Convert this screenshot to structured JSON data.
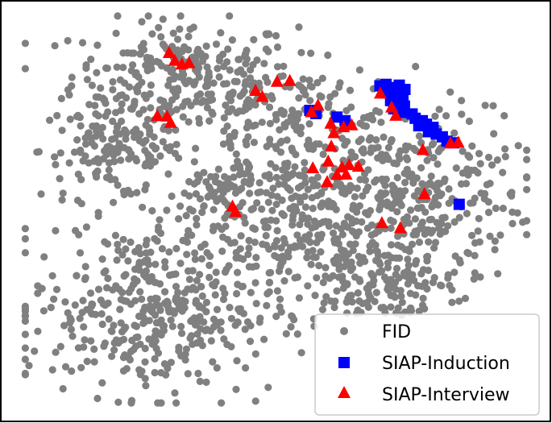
{
  "colors": {
    "fid": "#808080",
    "siap_induction": "#0000ff",
    "siap_interview": "#ff0000",
    "frame": "#000000",
    "legend_border": "#cccccc"
  },
  "legend": {
    "items": [
      {
        "label": "FID",
        "marker": "circle"
      },
      {
        "label": "SIAP-Induction",
        "marker": "square"
      },
      {
        "label": "SIAP-Interview",
        "marker": "triangle"
      }
    ],
    "placement": "lower-right"
  },
  "chart_data": {
    "type": "scatter",
    "title": "",
    "xlabel": "",
    "ylabel": "",
    "axes_visible": false,
    "grid": false,
    "xlim": [
      0,
      100
    ],
    "ylim": [
      0,
      100
    ],
    "series": [
      {
        "name": "FID",
        "marker": "circle",
        "clusters": [
          {
            "cx": 32,
            "cy": 84,
            "sx": 11,
            "sy": 7,
            "n": 260
          },
          {
            "cx": 18,
            "cy": 65,
            "sx": 7,
            "sy": 6,
            "n": 140
          },
          {
            "cx": 53,
            "cy": 70,
            "sx": 12,
            "sy": 8,
            "n": 200
          },
          {
            "cx": 77,
            "cy": 54,
            "sx": 11,
            "sy": 11,
            "n": 300
          },
          {
            "cx": 60,
            "cy": 42,
            "sx": 11,
            "sy": 9,
            "n": 220
          },
          {
            "cx": 43,
            "cy": 52,
            "sx": 8,
            "sy": 6,
            "n": 120
          },
          {
            "cx": 26,
            "cy": 25,
            "sx": 12,
            "sy": 11,
            "n": 420
          },
          {
            "cx": 72,
            "cy": 29,
            "sx": 7,
            "sy": 7,
            "n": 130
          }
        ],
        "count": 1790
      },
      {
        "name": "SIAP-Induction",
        "marker": "square",
        "points": [
          {
            "x": 70.3,
            "y": 81.3
          },
          {
            "x": 71.5,
            "y": 81.7
          },
          {
            "x": 72.8,
            "y": 80.9
          },
          {
            "x": 74.1,
            "y": 81.5
          },
          {
            "x": 75.2,
            "y": 80.4
          },
          {
            "x": 71.9,
            "y": 79.5
          },
          {
            "x": 73.6,
            "y": 78.8
          },
          {
            "x": 74.8,
            "y": 78.2
          },
          {
            "x": 72.4,
            "y": 77.6
          },
          {
            "x": 73.9,
            "y": 76.9
          },
          {
            "x": 75.1,
            "y": 76.2
          },
          {
            "x": 73.0,
            "y": 75.5
          },
          {
            "x": 74.5,
            "y": 74.6
          },
          {
            "x": 76.6,
            "y": 74.2
          },
          {
            "x": 77.2,
            "y": 73.1
          },
          {
            "x": 78.6,
            "y": 72.5
          },
          {
            "x": 77.9,
            "y": 71.2
          },
          {
            "x": 79.4,
            "y": 71.6
          },
          {
            "x": 80.7,
            "y": 70.8
          },
          {
            "x": 79.8,
            "y": 69.7
          },
          {
            "x": 81.3,
            "y": 69.1
          },
          {
            "x": 82.5,
            "y": 68.4
          },
          {
            "x": 83.4,
            "y": 67.3
          },
          {
            "x": 84.8,
            "y": 66.9
          },
          {
            "x": 56.6,
            "y": 75.1
          },
          {
            "x": 57.8,
            "y": 74.3
          },
          {
            "x": 61.9,
            "y": 73.4
          },
          {
            "x": 63.5,
            "y": 72.5
          },
          {
            "x": 85.8,
            "y": 51.3
          }
        ]
      },
      {
        "name": "SIAP-Interview",
        "marker": "triangle",
        "points": [
          {
            "x": 29.1,
            "y": 89.8
          },
          {
            "x": 30.2,
            "y": 87.8
          },
          {
            "x": 31.6,
            "y": 86.9
          },
          {
            "x": 33.0,
            "y": 87.2
          },
          {
            "x": 26.8,
            "y": 73.8
          },
          {
            "x": 28.7,
            "y": 73.7
          },
          {
            "x": 29.4,
            "y": 72.1
          },
          {
            "x": 46.0,
            "y": 80.2
          },
          {
            "x": 47.3,
            "y": 78.7
          },
          {
            "x": 50.2,
            "y": 82.5
          },
          {
            "x": 52.7,
            "y": 82.7
          },
          {
            "x": 56.9,
            "y": 74.8
          },
          {
            "x": 58.2,
            "y": 76.5
          },
          {
            "x": 60.7,
            "y": 71.9
          },
          {
            "x": 63.2,
            "y": 71.0
          },
          {
            "x": 64.8,
            "y": 71.5
          },
          {
            "x": 61.3,
            "y": 69.5
          },
          {
            "x": 60.8,
            "y": 66.1
          },
          {
            "x": 57.2,
            "y": 60.6
          },
          {
            "x": 60.2,
            "y": 62.3
          },
          {
            "x": 62.9,
            "y": 60.8
          },
          {
            "x": 64.3,
            "y": 61.4
          },
          {
            "x": 66.1,
            "y": 61.0
          },
          {
            "x": 61.9,
            "y": 58.9
          },
          {
            "x": 60.0,
            "y": 57.1
          },
          {
            "x": 63.7,
            "y": 59.0
          },
          {
            "x": 70.4,
            "y": 79.5
          },
          {
            "x": 72.6,
            "y": 76.0
          },
          {
            "x": 73.4,
            "y": 73.9
          },
          {
            "x": 78.7,
            "y": 65.2
          },
          {
            "x": 84.1,
            "y": 66.9
          },
          {
            "x": 85.6,
            "y": 67.1
          },
          {
            "x": 79.0,
            "y": 54.0
          },
          {
            "x": 41.5,
            "y": 50.9
          },
          {
            "x": 42.1,
            "y": 49.5
          },
          {
            "x": 70.7,
            "y": 46.7
          },
          {
            "x": 74.3,
            "y": 45.4
          }
        ]
      }
    ]
  }
}
